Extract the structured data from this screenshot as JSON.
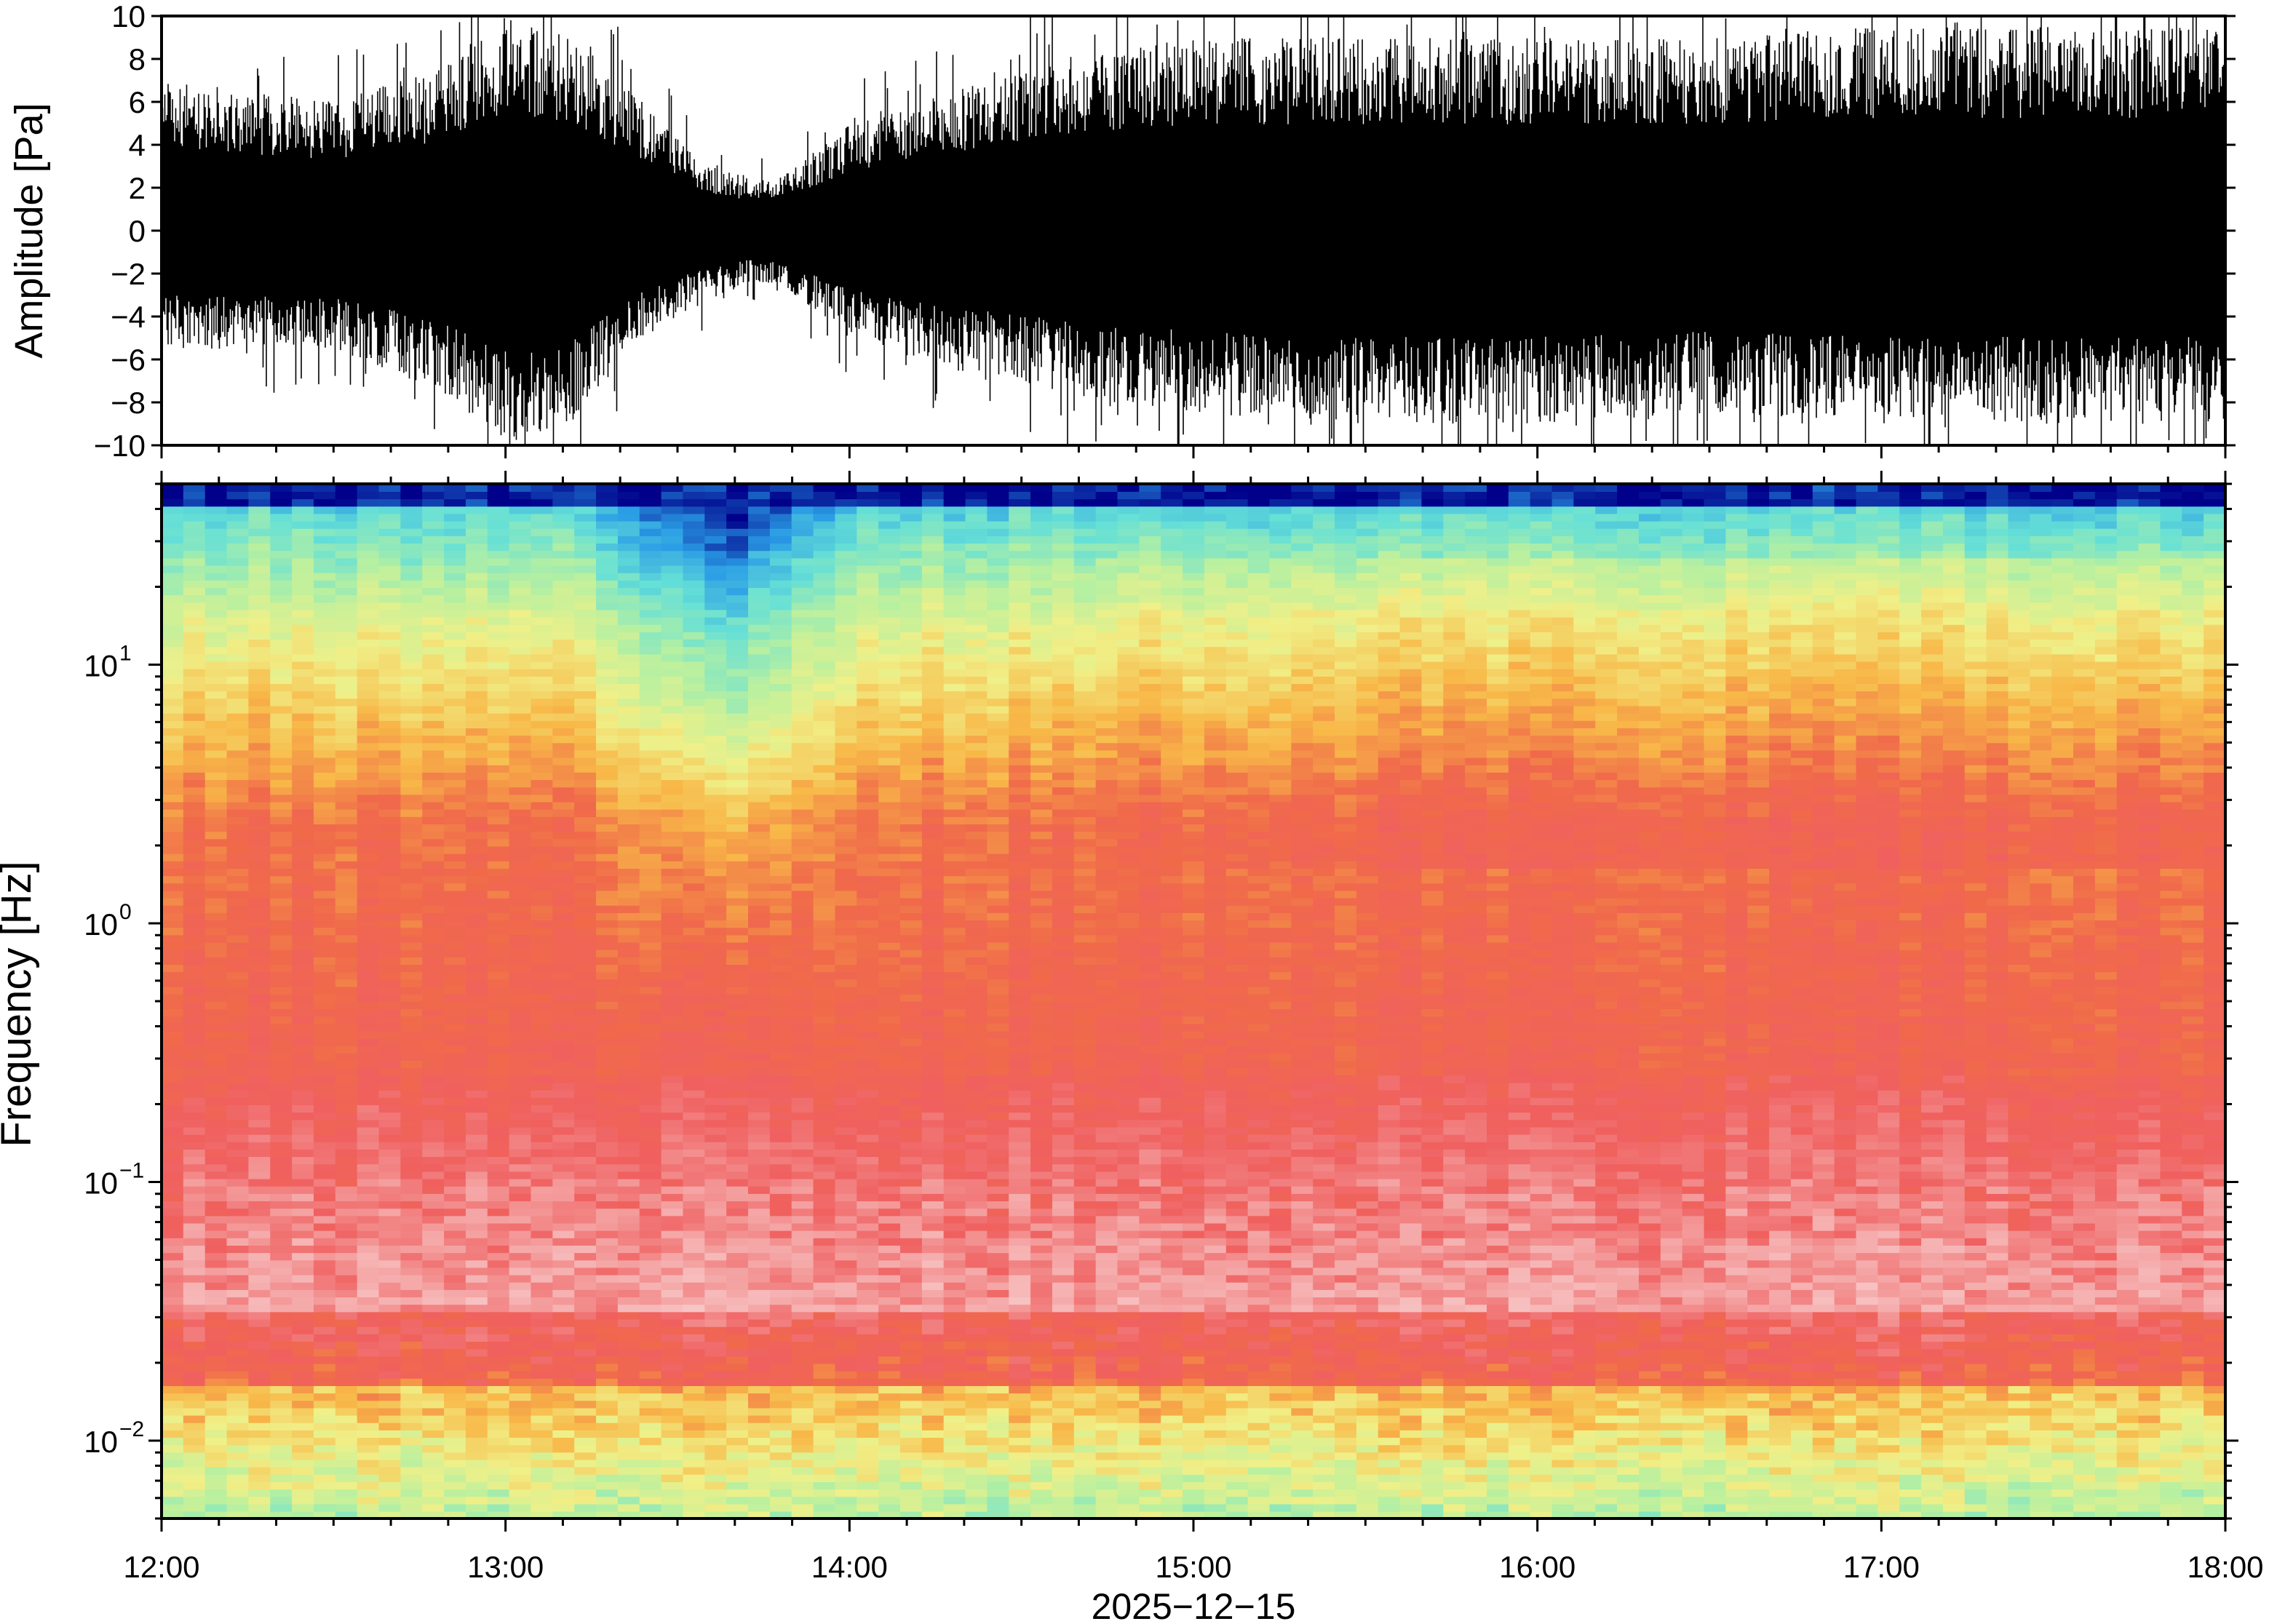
{
  "chart_data": [
    {
      "type": "line",
      "ylabel": "Amplitude [Pa]",
      "xlabel": "",
      "ylim": [
        -10,
        10
      ],
      "yticks": [
        10,
        8,
        6,
        4,
        2,
        0,
        -2,
        -4,
        -6,
        -8,
        -10
      ],
      "ytick_labels": [
        "10",
        "8",
        "6",
        "4",
        "2",
        "0",
        "−2",
        "−4",
        "−6",
        "−8",
        "−10"
      ],
      "grid": false,
      "series_color": "#000000",
      "envelope_time_hours": [
        12.0,
        12.5,
        12.8,
        13.0,
        13.2,
        13.4,
        13.55,
        13.7,
        13.8,
        14.0,
        14.3,
        14.6,
        15.0,
        15.5,
        16.0,
        16.5,
        17.0,
        17.5,
        18.0
      ],
      "envelope_max_pa": [
        7,
        6,
        7.5,
        10,
        9,
        6,
        3.5,
        2.5,
        2.5,
        5,
        6.5,
        8,
        9,
        9,
        9,
        9,
        9.5,
        9.5,
        9.5
      ],
      "envelope_min_pa": [
        -5.5,
        -5.5,
        -7.5,
        -10,
        -9,
        -5,
        -3.5,
        -2.5,
        -2.5,
        -5,
        -6.5,
        -7.5,
        -8.5,
        -9,
        -9,
        -8.5,
        -9,
        -9,
        -9
      ]
    },
    {
      "type": "heatmap",
      "ylabel": "Frequency [Hz]",
      "xlabel": "2025−12−15",
      "y_scale": "log",
      "ylim": [
        0.005,
        50
      ],
      "yticks": [
        10,
        1,
        0.1,
        0.01
      ],
      "ytick_labels": [
        {
          "base": "10",
          "exp": "1"
        },
        {
          "base": "10",
          "exp": "0"
        },
        {
          "base": "10",
          "exp": "−1"
        },
        {
          "base": "10",
          "exp": "−2"
        }
      ],
      "xlim_hours": [
        12,
        18
      ],
      "xticks_hours": [
        12,
        13,
        14,
        15,
        16,
        17,
        18
      ],
      "xtick_labels": [
        "12:00",
        "13:00",
        "14:00",
        "15:00",
        "16:00",
        "17:00",
        "18:00"
      ],
      "colormap": [
        "#00008b",
        "#2a9de6",
        "#66e0d6",
        "#b8f0a0",
        "#f0f088",
        "#f8b848",
        "#f06a4a",
        "#f06060",
        "#f4a0a0",
        "#f8c8c8"
      ],
      "grid": false,
      "quiet_interval_hours": [
        13.35,
        13.9
      ]
    }
  ]
}
